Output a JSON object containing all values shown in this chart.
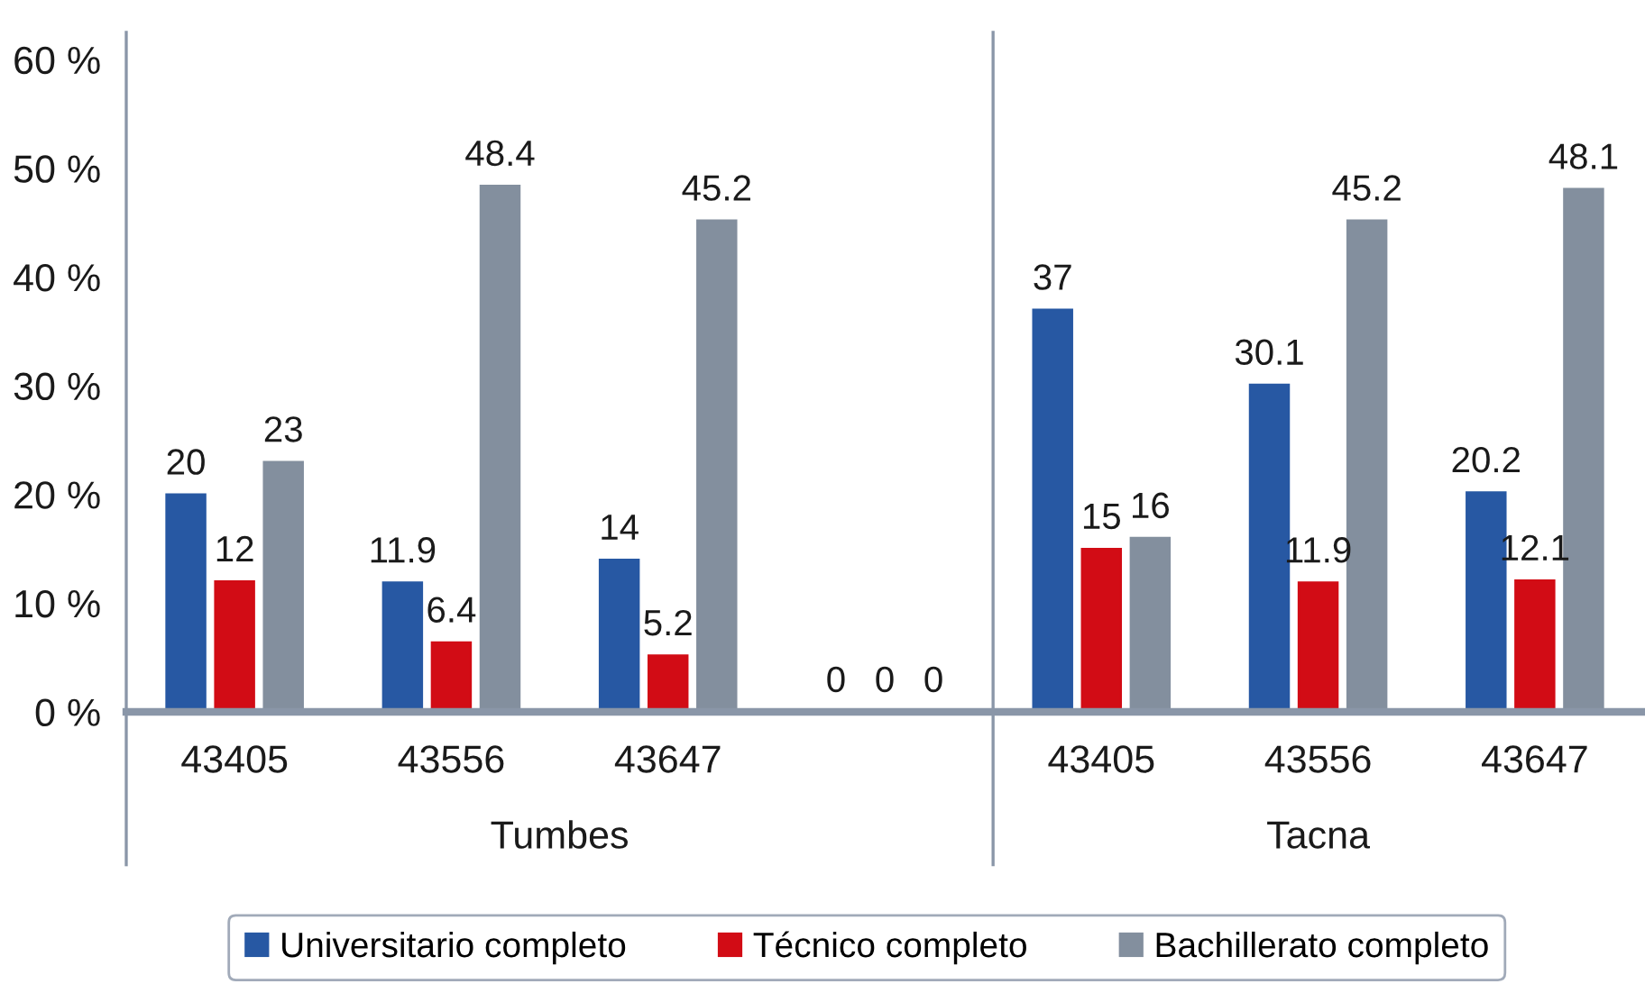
{
  "chart_data": {
    "type": "bar",
    "categories": [
      "43405",
      "43556",
      "43647",
      null,
      "43405",
      "43556",
      "43647"
    ],
    "series": [
      {
        "name": "Universitario completo",
        "color": "#2758a3",
        "values": [
          20,
          11.9,
          14,
          0,
          37,
          30.1,
          20.2
        ]
      },
      {
        "name": "Técnico completo",
        "color": "#d20c15",
        "values": [
          12,
          6.4,
          5.2,
          0,
          15,
          11.9,
          12.1
        ]
      },
      {
        "name": "Bachillerato completo",
        "color": "#838f9e",
        "values": [
          23,
          48.4,
          45.2,
          0,
          16,
          45.2,
          48.1
        ]
      }
    ],
    "ylim": [
      0,
      62.5
    ],
    "yticks": [
      {
        "value": 0,
        "label": "0 %"
      },
      {
        "value": 10,
        "label": "10 %"
      },
      {
        "value": 20,
        "label": "20 %"
      },
      {
        "value": 30,
        "label": "30 %"
      },
      {
        "value": 40,
        "label": "40 %"
      },
      {
        "value": 50,
        "label": "50 %"
      },
      {
        "value": 60,
        "label": "60 %"
      }
    ],
    "annotations": [
      "Tumbes",
      "Tacna"
    ],
    "data_labels": true,
    "grid": false,
    "legend": "bottom"
  }
}
